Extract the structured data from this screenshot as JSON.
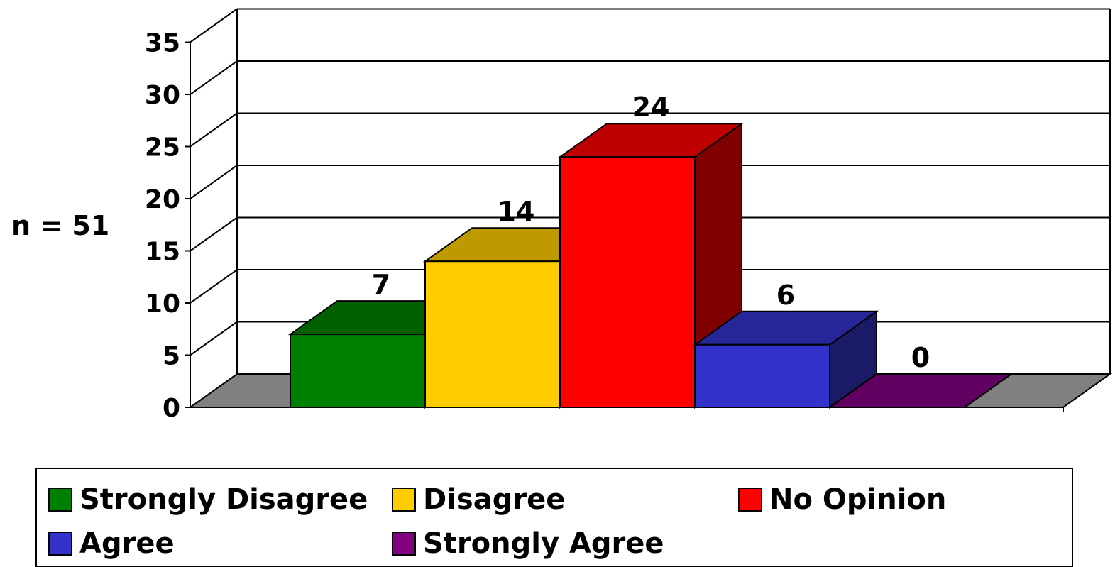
{
  "chart_data": {
    "type": "bar",
    "three_d": true,
    "categories": [
      "Strongly Disagree",
      "Disagree",
      "No Opinion",
      "Agree",
      "Strongly Agree"
    ],
    "values": [
      7,
      14,
      24,
      6,
      0
    ],
    "data_labels": [
      "7",
      "14",
      "24",
      "6",
      "0"
    ],
    "colors": [
      "#008000",
      "#FFCC00",
      "#FF0000",
      "#3333CC",
      "#800080"
    ],
    "ylim": [
      0,
      35
    ],
    "y_ticks": [
      0,
      5,
      10,
      15,
      20,
      25,
      30,
      35
    ],
    "y_tick_labels": [
      "0",
      "5",
      "10",
      "15",
      "20",
      "25",
      "30",
      "35"
    ],
    "ylabel": "n = 51",
    "xlabel": "",
    "title": "",
    "grid": true,
    "legend": {
      "placement": "bottom",
      "entries": [
        "Strongly Disagree",
        "Disagree",
        "No Opinion",
        "Agree",
        "Strongly Agree"
      ]
    }
  }
}
